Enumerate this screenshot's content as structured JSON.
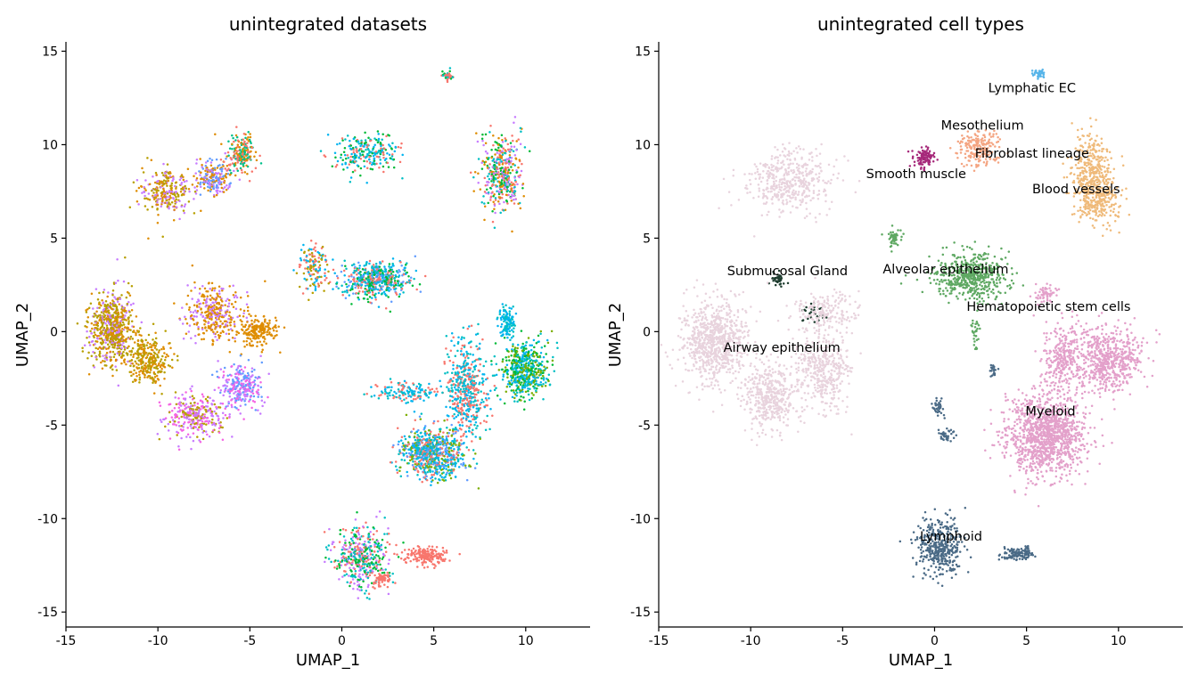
{
  "chart_data": [
    {
      "type": "scatter",
      "title": "unintegrated datasets",
      "xlabel": "UMAP_1",
      "ylabel": "UMAP_2",
      "xlim": [
        -15,
        13.5
      ],
      "ylim": [
        -15.8,
        15.5
      ],
      "xticks": [
        -15,
        -10,
        -5,
        0,
        5,
        10
      ],
      "yticks": [
        -15,
        -10,
        -5,
        0,
        5,
        10,
        15
      ],
      "xtick_labels": [
        "-15",
        "-10",
        "-5",
        "0",
        "5",
        "10"
      ],
      "ytick_labels": [
        "-15",
        "-10",
        "-5",
        "0",
        "5",
        "10",
        "15"
      ],
      "grid": false,
      "legend": "none",
      "palette": [
        "#F8766D",
        "#DE8C00",
        "#B79F00",
        "#7CAE00",
        "#00BA38",
        "#00C08B",
        "#00BFC4",
        "#00B4F0",
        "#619CFF",
        "#C77CFF",
        "#F564E3",
        "#FF64B0"
      ],
      "clusters": [
        {
          "x": -9.5,
          "y": 7.5,
          "sx": 1.1,
          "sy": 1.0,
          "n": 260,
          "colors": [
            2,
            1,
            9
          ]
        },
        {
          "x": -7.0,
          "y": 8.2,
          "sx": 0.8,
          "sy": 0.8,
          "n": 220,
          "colors": [
            8,
            9,
            1
          ]
        },
        {
          "x": -5.5,
          "y": 9.5,
          "sx": 0.6,
          "sy": 0.8,
          "n": 200,
          "colors": [
            0,
            1,
            5
          ]
        },
        {
          "x": -12.5,
          "y": 0.2,
          "sx": 1.0,
          "sy": 1.6,
          "n": 650,
          "colors": [
            2,
            2,
            1,
            9
          ]
        },
        {
          "x": -10.5,
          "y": -1.5,
          "sx": 1.0,
          "sy": 1.0,
          "n": 280,
          "colors": [
            2,
            1
          ]
        },
        {
          "x": -7.0,
          "y": 1.0,
          "sx": 1.3,
          "sy": 1.3,
          "n": 350,
          "colors": [
            1,
            1,
            9
          ]
        },
        {
          "x": -4.5,
          "y": 0.0,
          "sx": 0.8,
          "sy": 0.6,
          "n": 180,
          "colors": [
            1
          ]
        },
        {
          "x": -5.5,
          "y": -3.0,
          "sx": 1.0,
          "sy": 1.0,
          "n": 280,
          "colors": [
            9,
            8,
            10
          ]
        },
        {
          "x": -8.0,
          "y": -4.5,
          "sx": 1.3,
          "sy": 0.9,
          "n": 320,
          "colors": [
            10,
            9,
            2
          ]
        },
        {
          "x": 1.8,
          "y": 2.8,
          "sx": 1.5,
          "sy": 0.8,
          "n": 520,
          "colors": [
            0,
            7,
            4,
            8,
            6
          ]
        },
        {
          "x": -1.5,
          "y": 3.5,
          "sx": 0.7,
          "sy": 1.2,
          "n": 140,
          "colors": [
            0,
            7,
            2
          ]
        },
        {
          "x": 1.5,
          "y": 9.5,
          "sx": 1.5,
          "sy": 0.8,
          "n": 240,
          "colors": [
            7,
            4,
            6,
            0
          ]
        },
        {
          "x": 5.8,
          "y": 13.7,
          "sx": 0.2,
          "sy": 0.2,
          "n": 40,
          "colors": [
            6,
            4,
            0
          ]
        },
        {
          "x": 8.7,
          "y": 8.5,
          "sx": 0.9,
          "sy": 1.8,
          "n": 420,
          "colors": [
            0,
            4,
            6,
            1,
            9
          ]
        },
        {
          "x": 6.8,
          "y": -3.0,
          "sx": 1.0,
          "sy": 2.0,
          "n": 500,
          "colors": [
            0,
            7,
            6
          ]
        },
        {
          "x": 5.0,
          "y": -6.5,
          "sx": 1.5,
          "sy": 1.1,
          "n": 750,
          "colors": [
            6,
            0,
            7,
            3,
            8
          ]
        },
        {
          "x": 10.0,
          "y": -2.0,
          "sx": 1.0,
          "sy": 1.2,
          "n": 520,
          "colors": [
            7,
            6,
            3,
            4
          ]
        },
        {
          "x": 9.0,
          "y": 0.5,
          "sx": 0.4,
          "sy": 0.8,
          "n": 120,
          "colors": [
            7,
            6
          ]
        },
        {
          "x": 3.5,
          "y": -3.2,
          "sx": 1.5,
          "sy": 0.5,
          "n": 140,
          "colors": [
            6,
            7,
            0
          ]
        },
        {
          "x": 1.0,
          "y": -12.0,
          "sx": 1.3,
          "sy": 1.4,
          "n": 420,
          "colors": [
            6,
            4,
            9,
            0
          ]
        },
        {
          "x": 4.5,
          "y": -12.0,
          "sx": 1.0,
          "sy": 0.4,
          "n": 180,
          "colors": [
            0
          ]
        },
        {
          "x": 2.2,
          "y": -13.2,
          "sx": 0.4,
          "sy": 0.4,
          "n": 60,
          "colors": [
            0
          ]
        }
      ]
    },
    {
      "type": "scatter",
      "title": "unintegrated cell types",
      "xlabel": "UMAP_1",
      "ylabel": "UMAP_2",
      "xlim": [
        -15,
        13.5
      ],
      "ylim": [
        -15.8,
        15.5
      ],
      "xticks": [
        -15,
        -10,
        -5,
        0,
        5,
        10
      ],
      "yticks": [
        -15,
        -10,
        -5,
        0,
        5,
        10,
        15
      ],
      "xtick_labels": [
        "-15",
        "-10",
        "-5",
        "0",
        "5",
        "10"
      ],
      "ytick_labels": [
        "-15",
        "-10",
        "-5",
        "0",
        "5",
        "10",
        "15"
      ],
      "grid": false,
      "legend": "none",
      "cell_types": [
        {
          "label": "Lymphatic EC",
          "label_x": 5.3,
          "label_y": 13.0,
          "color": "#56B4E9",
          "clusters": [
            {
              "x": 5.6,
              "y": 13.8,
              "sx": 0.3,
              "sy": 0.2,
              "n": 40
            }
          ]
        },
        {
          "label": "Mesothelium",
          "label_x": 2.6,
          "label_y": 11.0,
          "color": "#F4A582",
          "clusters": [
            {
              "x": 2.5,
              "y": 9.8,
              "sx": 0.9,
              "sy": 0.8,
              "n": 200
            }
          ]
        },
        {
          "label": "Fibroblast lineage",
          "label_x": 5.3,
          "label_y": 9.5,
          "color": "#EFBA7A",
          "clusters": [
            {
              "x": 8.5,
              "y": 8.5,
              "sx": 0.9,
              "sy": 1.7,
              "n": 380
            }
          ]
        },
        {
          "label": "Smooth muscle",
          "label_x": -1.0,
          "label_y": 8.4,
          "color": "#A6287A",
          "clusters": [
            {
              "x": -0.5,
              "y": 9.3,
              "sx": 0.5,
              "sy": 0.4,
              "n": 100
            }
          ]
        },
        {
          "label": "Blood vessels",
          "label_x": 7.7,
          "label_y": 7.6,
          "color": "#EFBA7A",
          "clusters": [
            {
              "x": 9.0,
              "y": 7.0,
              "sx": 1.0,
              "sy": 1.0,
              "n": 200
            }
          ]
        },
        {
          "label": "Alveolar epithelium",
          "label_x": 0.6,
          "label_y": 3.3,
          "color": "#5EA862",
          "clusters": [
            {
              "x": 2.0,
              "y": 3.0,
              "sx": 1.6,
              "sy": 1.0,
              "n": 520
            },
            {
              "x": -2.2,
              "y": 5.0,
              "sx": 0.3,
              "sy": 0.4,
              "n": 50
            },
            {
              "x": 2.2,
              "y": 0.0,
              "sx": 0.2,
              "sy": 0.8,
              "n": 30
            }
          ]
        },
        {
          "label": "Submucosal Gland",
          "label_x": -8.0,
          "label_y": 3.2,
          "color": "#1E3D2F",
          "clusters": [
            {
              "x": -8.5,
              "y": 2.8,
              "sx": 0.3,
              "sy": 0.3,
              "n": 40
            },
            {
              "x": -6.5,
              "y": 1.0,
              "sx": 0.5,
              "sy": 0.4,
              "n": 30
            }
          ]
        },
        {
          "label": "Hematopoietic stem cells",
          "label_x": 6.2,
          "label_y": 1.3,
          "color": "#E3A0CA",
          "clusters": [
            {
              "x": 6.0,
              "y": 2.0,
              "sx": 0.6,
              "sy": 0.4,
              "n": 60
            }
          ]
        },
        {
          "label": "Airway epithelium",
          "label_x": -8.3,
          "label_y": -0.9,
          "color": "#E8D3DD",
          "clusters": [
            {
              "x": -12.0,
              "y": -0.5,
              "sx": 1.4,
              "sy": 1.8,
              "n": 800
            },
            {
              "x": -9.0,
              "y": -3.5,
              "sx": 1.2,
              "sy": 1.5,
              "n": 450
            },
            {
              "x": -6.0,
              "y": -2.0,
              "sx": 1.2,
              "sy": 1.6,
              "n": 400
            },
            {
              "x": -8.0,
              "y": 8.0,
              "sx": 2.0,
              "sy": 1.4,
              "n": 450
            },
            {
              "x": -6.0,
              "y": 1.0,
              "sx": 1.5,
              "sy": 1.0,
              "n": 200
            }
          ]
        },
        {
          "label": "Myeloid",
          "label_x": 6.3,
          "label_y": -4.3,
          "color": "#E3A0CA",
          "clusters": [
            {
              "x": 6.0,
              "y": -5.5,
              "sx": 1.8,
              "sy": 1.8,
              "n": 1200
            },
            {
              "x": 9.5,
              "y": -1.5,
              "sx": 1.4,
              "sy": 1.5,
              "n": 600
            },
            {
              "x": 7.0,
              "y": -1.5,
              "sx": 1.0,
              "sy": 1.5,
              "n": 300
            }
          ]
        },
        {
          "label": "Lymphoid",
          "label_x": 0.9,
          "label_y": -11.0,
          "color": "#4A6A86",
          "clusters": [
            {
              "x": 0.3,
              "y": -11.5,
              "sx": 1.0,
              "sy": 1.3,
              "n": 380
            },
            {
              "x": 4.5,
              "y": -11.9,
              "sx": 0.8,
              "sy": 0.3,
              "n": 120
            },
            {
              "x": 0.2,
              "y": -4.0,
              "sx": 0.3,
              "sy": 0.5,
              "n": 35
            },
            {
              "x": 0.6,
              "y": -5.5,
              "sx": 0.4,
              "sy": 0.3,
              "n": 35
            },
            {
              "x": 3.2,
              "y": -2.0,
              "sx": 0.2,
              "sy": 0.3,
              "n": 20
            }
          ]
        }
      ]
    }
  ]
}
